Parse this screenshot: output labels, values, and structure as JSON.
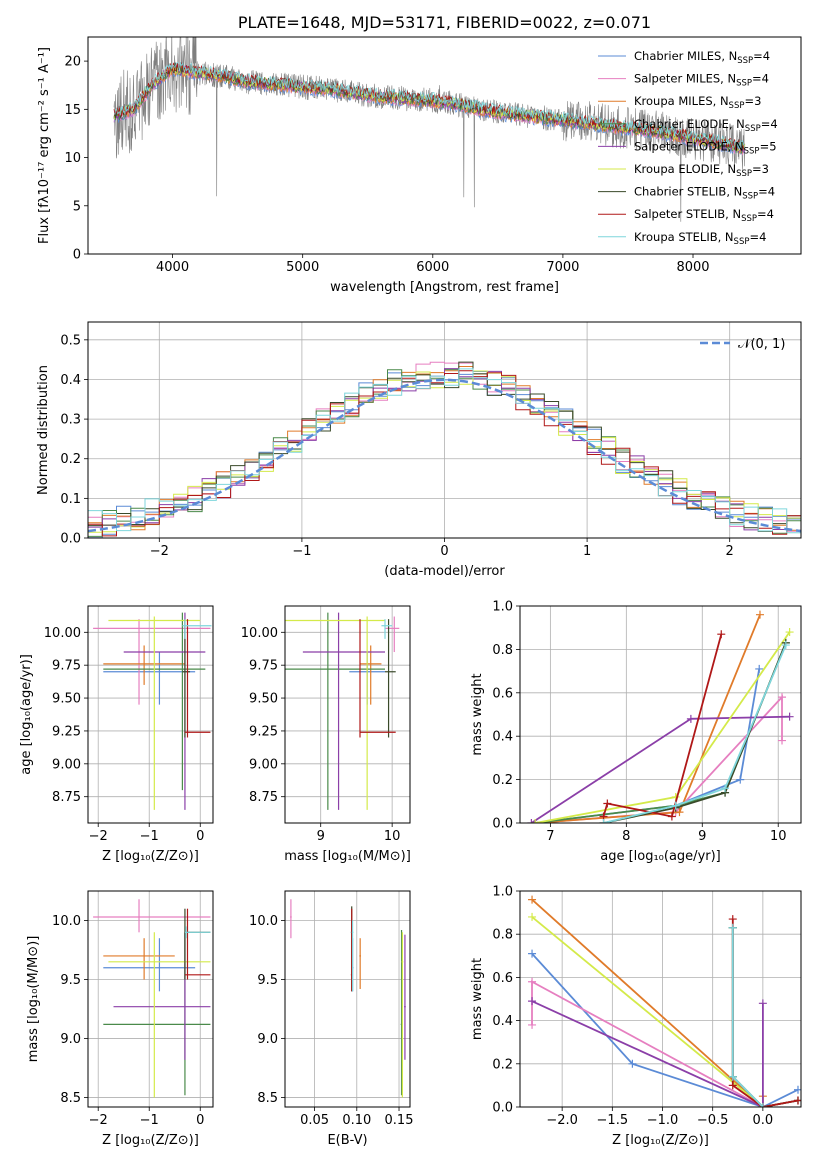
{
  "chart_data": [
    {
      "type": "line",
      "panel": "spectrum",
      "title": "PLATE=1648, MJD=53171, FIBERID=0022, z=0.071",
      "xlabel": "wavelength [Angstrom, rest frame]",
      "ylabel": "Flux [fλ10⁻¹⁷ erg cm⁻² s⁻¹ A⁻¹]",
      "xlim": [
        3350,
        8830
      ],
      "ylim": [
        0,
        22.5
      ],
      "xticks": [
        "4000",
        "5000",
        "6000",
        "7000",
        "8000"
      ],
      "yticks": [
        "0",
        "5",
        "10",
        "15",
        "20"
      ],
      "grid": false,
      "legend": "top-right",
      "continuum": {
        "x": [
          3550,
          3700,
          3850,
          4000,
          4200,
          4400,
          4600,
          4800,
          5000,
          5200,
          5400,
          5600,
          5800,
          6000,
          6200,
          6400,
          6600,
          6800,
          7000,
          7200,
          7400,
          7600,
          7800,
          8000,
          8200,
          8400
        ],
        "y": [
          14.3,
          15.0,
          17.6,
          19.2,
          18.8,
          18.4,
          17.8,
          17.6,
          17.3,
          17.1,
          16.7,
          16.3,
          16.1,
          15.9,
          15.5,
          14.9,
          14.5,
          14.2,
          13.9,
          13.6,
          13.2,
          12.9,
          12.5,
          12.0,
          11.5,
          10.9
        ]
      },
      "series": [
        {
          "name": "Chabrier MILES, N_SSP=4",
          "label_main": "Chabrier MILES, N",
          "label_sub": "SSP",
          "label_tail": "=4",
          "color": "#5b8bd6"
        },
        {
          "name": "Salpeter MILES, N_SSP=4",
          "label_main": "Salpeter MILES, N",
          "label_sub": "SSP",
          "label_tail": "=4",
          "color": "#e67fc0"
        },
        {
          "name": "Kroupa MILES, N_SSP=3",
          "label_main": "Kroupa MILES, N",
          "label_sub": "SSP",
          "label_tail": "=3",
          "color": "#e07b2a"
        },
        {
          "name": "Chabrier ELODIE, N_SSP=4",
          "label_main": "Chabrier ELODIE, N",
          "label_sub": "SSP",
          "label_tail": "=4",
          "color": "#4a8a4a"
        },
        {
          "name": "Salpeter ELODIE, N_SSP=5",
          "label_main": "Salpeter ELODIE, N",
          "label_sub": "SSP",
          "label_tail": "=5",
          "color": "#8b3fa8"
        },
        {
          "name": "Kroupa ELODIE, N_SSP=3",
          "label_main": "Kroupa ELODIE, N",
          "label_sub": "SSP",
          "label_tail": "=3",
          "color": "#d4ea4a"
        },
        {
          "name": "Chabrier STELIB, N_SSP=4",
          "label_main": "Chabrier STELIB, N",
          "label_sub": "SSP",
          "label_tail": "=4",
          "color": "#3a4a2a"
        },
        {
          "name": "Salpeter STELIB, N_SSP=4",
          "label_main": "Salpeter STELIB, N",
          "label_sub": "SSP",
          "label_tail": "=4",
          "color": "#b01818"
        },
        {
          "name": "Kroupa STELIB, N_SSP=4",
          "label_main": "Kroupa STELIB, N",
          "label_sub": "SSP",
          "label_tail": "=4",
          "color": "#7fd6dc"
        }
      ]
    },
    {
      "type": "line",
      "panel": "residual-histogram",
      "xlabel": "(data-model)/error",
      "ylabel": "Normed distribution",
      "xlim": [
        -2.5,
        2.5
      ],
      "ylim": [
        0,
        0.545
      ],
      "xticks": [
        "−2",
        "−1",
        "0",
        "1",
        "2"
      ],
      "yticks": [
        "0.0",
        "0.1",
        "0.2",
        "0.3",
        "0.4",
        "0.5"
      ],
      "grid": true,
      "legend": "top-right",
      "legend_label": "𝒩(0, 1)",
      "bin_edges_start": -2.5,
      "bin_width": 0.1,
      "gaussian": {
        "mean": 0,
        "sigma": 1,
        "color": "#5b8bd6"
      }
    },
    {
      "type": "scatter",
      "panel": "age-vs-Z",
      "xlabel": "Z [log₁₀(Z/Z⊙)]",
      "ylabel": "age  [log₁₀(age/yr)]",
      "xlim": [
        -2.2,
        0.25
      ],
      "ylim": [
        8.55,
        10.2
      ],
      "xticks": [
        "−2",
        "−1",
        "0"
      ],
      "yticks": [
        "8.75",
        "9.00",
        "9.25",
        "9.50",
        "9.75",
        "10.00"
      ],
      "grid": true,
      "crosses": [
        {
          "series": "Chabrier MILES",
          "color": "#5b8bd6",
          "x": -0.8,
          "y": 9.7,
          "x_lo": -1.9,
          "x_hi": -0.1,
          "y_lo": 9.45,
          "y_hi": 9.85
        },
        {
          "series": "Salpeter MILES",
          "color": "#e67fc0",
          "x": -1.2,
          "y": 10.03,
          "x_lo": -2.1,
          "x_hi": 0.2,
          "y_lo": 9.45,
          "y_hi": 10.1
        },
        {
          "series": "Kroupa MILES",
          "color": "#e07b2a",
          "x": -1.1,
          "y": 9.76,
          "x_lo": -1.9,
          "x_hi": -0.3,
          "y_lo": 9.6,
          "y_hi": 9.9
        },
        {
          "series": "Chabrier ELODIE",
          "color": "#4a8a4a",
          "x": -0.35,
          "y": 9.72,
          "x_lo": -1.9,
          "x_hi": 0.1,
          "y_lo": 8.8,
          "y_hi": 10.15
        },
        {
          "series": "Salpeter ELODIE",
          "color": "#8b3fa8",
          "x": -0.3,
          "y": 9.85,
          "x_lo": -1.5,
          "x_hi": 0.1,
          "y_lo": 8.65,
          "y_hi": 10.15
        },
        {
          "series": "Kroupa ELODIE",
          "color": "#d4ea4a",
          "x": -0.9,
          "y": 10.09,
          "x_lo": -1.8,
          "x_hi": 0.0,
          "y_lo": 8.65,
          "y_hi": 10.12
        },
        {
          "series": "Chabrier STELIB",
          "color": "#3a4a2a",
          "x": -0.3,
          "y": 9.7,
          "x_lo": -0.35,
          "x_hi": -0.2,
          "y_lo": 9.2,
          "y_hi": 10.1
        },
        {
          "series": "Salpeter STELIB",
          "color": "#b01818",
          "x": -0.25,
          "y": 9.24,
          "x_lo": -0.3,
          "x_hi": 0.2,
          "y_lo": 9.2,
          "y_hi": 10.1
        },
        {
          "series": "Kroupa STELIB",
          "color": "#7fd6dc",
          "x": -0.3,
          "y": 10.05,
          "x_lo": -0.35,
          "x_hi": 0.22,
          "y_lo": 9.95,
          "y_hi": 10.1
        }
      ]
    },
    {
      "type": "scatter",
      "panel": "age-vs-mass",
      "xlabel": "mass [log₁₀(M/M⊙)]",
      "xlim": [
        8.5,
        10.25
      ],
      "ylim": [
        8.55,
        10.2
      ],
      "xticks": [
        "9",
        "10"
      ],
      "yticks": [
        "8.75",
        "9.00",
        "9.25",
        "9.50",
        "9.75",
        "10.00"
      ],
      "grid": true,
      "crosses": [
        {
          "series": "Chabrier MILES",
          "color": "#5b8bd6",
          "x": 9.65,
          "y": 9.7,
          "x_lo": 9.4,
          "x_hi": 9.9,
          "y_lo": 9.45,
          "y_hi": 9.85
        },
        {
          "series": "Salpeter MILES",
          "color": "#e67fc0",
          "x": 10.03,
          "y": 10.03,
          "x_lo": 9.9,
          "x_hi": 10.1,
          "y_lo": 9.85,
          "y_hi": 10.12
        },
        {
          "series": "Kroupa MILES",
          "color": "#e07b2a",
          "x": 9.7,
          "y": 9.76,
          "x_lo": 9.55,
          "x_hi": 9.85,
          "y_lo": 9.45,
          "y_hi": 9.9
        },
        {
          "series": "Chabrier ELODIE",
          "color": "#4a8a4a",
          "x": 9.1,
          "y": 9.72,
          "x_lo": 8.5,
          "x_hi": 9.9,
          "y_lo": 8.65,
          "y_hi": 10.15
        },
        {
          "series": "Salpeter ELODIE",
          "color": "#8b3fa8",
          "x": 9.25,
          "y": 9.85,
          "x_lo": 8.75,
          "x_hi": 9.9,
          "y_lo": 8.65,
          "y_hi": 10.15
        },
        {
          "series": "Kroupa ELODIE",
          "color": "#d4ea4a",
          "x": 9.65,
          "y": 10.09,
          "x_lo": 8.5,
          "x_hi": 9.9,
          "y_lo": 8.65,
          "y_hi": 10.12
        },
        {
          "series": "Chabrier STELIB",
          "color": "#3a4a2a",
          "x": 9.95,
          "y": 9.7,
          "x_lo": 9.9,
          "x_hi": 10.05,
          "y_lo": 9.2,
          "y_hi": 10.1
        },
        {
          "series": "Salpeter STELIB",
          "color": "#b01818",
          "x": 9.55,
          "y": 9.24,
          "x_lo": 9.55,
          "x_hi": 10.05,
          "y_lo": 9.2,
          "y_hi": 10.1
        },
        {
          "series": "Kroupa STELIB",
          "color": "#7fd6dc",
          "x": 9.9,
          "y": 10.05,
          "x_lo": 9.85,
          "x_hi": 10.0,
          "y_lo": 9.95,
          "y_hi": 10.1
        }
      ]
    },
    {
      "type": "line",
      "panel": "mass-weight-vs-age",
      "xlabel": "age  [log₁₀(age/yr)]",
      "ylabel": "mass weight",
      "xlim": [
        6.6,
        10.3
      ],
      "ylim": [
        0,
        1.0
      ],
      "xticks": [
        "7",
        "8",
        "9",
        "10"
      ],
      "yticks": [
        "0.0",
        "0.2",
        "0.4",
        "0.6",
        "0.8",
        "1.0"
      ],
      "grid": true,
      "series": [
        {
          "name": "Chabrier MILES",
          "color": "#5b8bd6",
          "x": [
            6.8,
            8.65,
            9.5,
            9.75
          ],
          "y": [
            0.0,
            0.08,
            0.2,
            0.71
          ]
        },
        {
          "name": "Salpeter MILES",
          "color": "#e67fc0",
          "x": [
            6.8,
            8.65,
            10.05,
            10.05
          ],
          "y": [
            0.0,
            0.05,
            0.58,
            0.38
          ]
        },
        {
          "name": "Kroupa MILES",
          "color": "#e07b2a",
          "x": [
            6.8,
            8.7,
            9.76
          ],
          "y": [
            0.0,
            0.05,
            0.96
          ]
        },
        {
          "name": "Chabrier ELODIE",
          "color": "#4a8a4a",
          "x": [
            6.8,
            8.65,
            9.3,
            10.1
          ],
          "y": [
            0.0,
            0.08,
            0.14,
            0.83
          ]
        },
        {
          "name": "Salpeter ELODIE",
          "color": "#8b3fa8",
          "x": [
            6.75,
            8.85,
            10.15
          ],
          "y": [
            0.0,
            0.48,
            0.49
          ]
        },
        {
          "name": "Kroupa ELODIE",
          "color": "#d4ea4a",
          "x": [
            6.8,
            8.65,
            10.15
          ],
          "y": [
            0.0,
            0.12,
            0.88
          ]
        },
        {
          "name": "Chabrier STELIB",
          "color": "#3a4a2a",
          "x": [
            7.7,
            8.65,
            9.3,
            10.1
          ],
          "y": [
            0.0,
            0.07,
            0.14,
            0.83
          ]
        },
        {
          "name": "Salpeter STELIB",
          "color": "#b01818",
          "x": [
            7.7,
            7.75,
            8.6,
            9.25
          ],
          "y": [
            0.03,
            0.09,
            0.03,
            0.87
          ]
        },
        {
          "name": "Kroupa STELIB",
          "color": "#7fd6dc",
          "x": [
            7.7,
            8.65,
            9.3,
            10.1
          ],
          "y": [
            0.0,
            0.08,
            0.16,
            0.82
          ]
        }
      ]
    },
    {
      "type": "scatter",
      "panel": "mass-vs-Z",
      "xlabel": "Z [log₁₀(Z/Z⊙)]",
      "ylabel": "mass [log₁₀(M/M⊙)]",
      "xlim": [
        -2.2,
        0.25
      ],
      "ylim": [
        8.42,
        10.25
      ],
      "xticks": [
        "−2",
        "−1",
        "0"
      ],
      "yticks": [
        "8.5",
        "9.0",
        "9.5",
        "10.0"
      ],
      "grid": true,
      "crosses": [
        {
          "series": "Chabrier MILES",
          "color": "#5b8bd6",
          "x": -0.8,
          "y": 9.6,
          "x_lo": -1.9,
          "x_hi": -0.1,
          "y_lo": 9.4,
          "y_hi": 9.85
        },
        {
          "series": "Salpeter MILES",
          "color": "#e67fc0",
          "x": -1.2,
          "y": 10.03,
          "x_lo": -2.1,
          "x_hi": 0.2,
          "y_lo": 9.9,
          "y_hi": 10.18
        },
        {
          "series": "Kroupa MILES",
          "color": "#e07b2a",
          "x": -1.1,
          "y": 9.7,
          "x_lo": -1.9,
          "x_hi": -0.5,
          "y_lo": 9.5,
          "y_hi": 9.85
        },
        {
          "series": "Chabrier ELODIE",
          "color": "#4a8a4a",
          "x": -0.3,
          "y": 9.12,
          "x_lo": -1.9,
          "x_hi": 0.2,
          "y_lo": 8.52,
          "y_hi": 9.9
        },
        {
          "series": "Salpeter ELODIE",
          "color": "#8b3fa8",
          "x": -0.3,
          "y": 9.27,
          "x_lo": -1.7,
          "x_hi": 0.2,
          "y_lo": 8.82,
          "y_hi": 9.9
        },
        {
          "series": "Kroupa ELODIE",
          "color": "#d4ea4a",
          "x": -0.9,
          "y": 9.65,
          "x_lo": -1.8,
          "x_hi": 0.2,
          "y_lo": 8.5,
          "y_hi": 9.9
        },
        {
          "series": "Chabrier STELIB",
          "color": "#3a4a2a",
          "x": -0.3,
          "y": 9.9,
          "x_lo": -0.3,
          "x_hi": 0.2,
          "y_lo": 9.5,
          "y_hi": 10.1
        },
        {
          "series": "Salpeter STELIB",
          "color": "#b01818",
          "x": -0.25,
          "y": 9.54,
          "x_lo": -0.3,
          "x_hi": 0.2,
          "y_lo": 9.5,
          "y_hi": 10.1
        },
        {
          "series": "Kroupa STELIB",
          "color": "#7fd6dc",
          "x": -0.28,
          "y": 9.9,
          "x_lo": -0.3,
          "x_hi": 0.2,
          "y_lo": 9.85,
          "y_hi": 9.95
        }
      ]
    },
    {
      "type": "scatter",
      "panel": "mass-vs-EBV",
      "xlabel": "E(B-V)",
      "xlim": [
        0.015,
        0.163
      ],
      "ylim": [
        8.42,
        10.25
      ],
      "xticks": [
        "0.05",
        "0.10",
        "0.15"
      ],
      "yticks": [
        "8.5",
        "9.0",
        "9.5",
        "10.0"
      ],
      "grid": true,
      "crosses": [
        {
          "series": "Chabrier MILES",
          "color": "#5b8bd6",
          "x": 0.095,
          "y": 9.6,
          "x_lo": 0.094,
          "x_hi": 0.096,
          "y_lo": 9.4,
          "y_hi": 9.85
        },
        {
          "series": "Salpeter MILES",
          "color": "#e67fc0",
          "x": 0.022,
          "y": 10.03,
          "x_lo": 0.021,
          "x_hi": 0.023,
          "y_lo": 9.85,
          "y_hi": 10.18
        },
        {
          "series": "Kroupa MILES",
          "color": "#e07b2a",
          "x": 0.104,
          "y": 9.7,
          "x_lo": 0.103,
          "x_hi": 0.105,
          "y_lo": 9.42,
          "y_hi": 9.85
        },
        {
          "series": "Chabrier ELODIE",
          "color": "#4a8a4a",
          "x": 0.153,
          "y": 9.12,
          "x_lo": 0.152,
          "x_hi": 0.154,
          "y_lo": 8.52,
          "y_hi": 9.92
        },
        {
          "series": "Salpeter ELODIE",
          "color": "#8b3fa8",
          "x": 0.157,
          "y": 9.27,
          "x_lo": 0.156,
          "x_hi": 0.158,
          "y_lo": 8.82,
          "y_hi": 9.88
        },
        {
          "series": "Kroupa ELODIE",
          "color": "#d4ea4a",
          "x": 0.154,
          "y": 9.65,
          "x_lo": 0.153,
          "x_hi": 0.155,
          "y_lo": 8.5,
          "y_hi": 9.9
        },
        {
          "series": "Chabrier STELIB",
          "color": "#3a4a2a",
          "x": 0.094,
          "y": 9.9,
          "x_lo": 0.093,
          "x_hi": 0.095,
          "y_lo": 9.4,
          "y_hi": 10.12
        },
        {
          "series": "Salpeter STELIB",
          "color": "#b01818",
          "x": 0.094,
          "y": 9.54,
          "x_lo": 0.093,
          "x_hi": 0.095,
          "y_lo": 9.4,
          "y_hi": 10.1
        },
        {
          "series": "Kroupa STELIB",
          "color": "#7fd6dc",
          "x": 0.095,
          "y": 9.9,
          "x_lo": 0.094,
          "x_hi": 0.096,
          "y_lo": 9.4,
          "y_hi": 10.0
        }
      ]
    },
    {
      "type": "line",
      "panel": "mass-weight-vs-Z",
      "xlabel": "Z [log₁₀(Z/Z⊙)]",
      "ylabel": "mass weight",
      "xlim": [
        -2.42,
        0.38
      ],
      "ylim": [
        0,
        1.0
      ],
      "xticks": [
        "−2.0",
        "−1.5",
        "−1.0",
        "−0.5",
        "0.0"
      ],
      "yticks": [
        "0.0",
        "0.2",
        "0.4",
        "0.6",
        "0.8",
        "1.0"
      ],
      "grid": true,
      "series": [
        {
          "name": "Chabrier MILES",
          "color": "#5b8bd6",
          "x": [
            -2.3,
            -1.3,
            0.0,
            0.35
          ],
          "y": [
            0.71,
            0.2,
            0.0,
            0.08
          ]
        },
        {
          "name": "Salpeter MILES",
          "color": "#e67fc0",
          "x": [
            -2.3,
            -2.3,
            0.0
          ],
          "y": [
            0.38,
            0.58,
            0.0
          ]
        },
        {
          "name": "Kroupa MILES",
          "color": "#e07b2a",
          "x": [
            -2.3,
            0.0,
            0.0
          ],
          "y": [
            0.96,
            0.0,
            0.05
          ]
        },
        {
          "name": "Chabrier ELODIE",
          "color": "#4a8a4a",
          "x": [
            -0.3,
            -0.3,
            0.0,
            0.35
          ],
          "y": [
            0.83,
            0.14,
            0.0,
            0.03
          ]
        },
        {
          "name": "Salpeter ELODIE",
          "color": "#8b3fa8",
          "x": [
            -2.3,
            0.0,
            0.0
          ],
          "y": [
            0.49,
            0.0,
            0.48
          ]
        },
        {
          "name": "Kroupa ELODIE",
          "color": "#d4ea4a",
          "x": [
            -2.3,
            0.0
          ],
          "y": [
            0.88,
            0.0
          ]
        },
        {
          "name": "Chabrier STELIB",
          "color": "#3a4a2a",
          "x": [
            -0.3,
            -0.3,
            0.0,
            0.35
          ],
          "y": [
            0.83,
            0.14,
            0.0,
            0.03
          ]
        },
        {
          "name": "Salpeter STELIB",
          "color": "#b01818",
          "x": [
            -0.3,
            -0.3,
            0.0,
            0.35
          ],
          "y": [
            0.87,
            0.1,
            0.0,
            0.03
          ]
        },
        {
          "name": "Kroupa STELIB",
          "color": "#7fd6dc",
          "x": [
            -0.3,
            -0.3,
            0.0
          ],
          "y": [
            0.83,
            0.14,
            0.0
          ]
        }
      ]
    }
  ]
}
